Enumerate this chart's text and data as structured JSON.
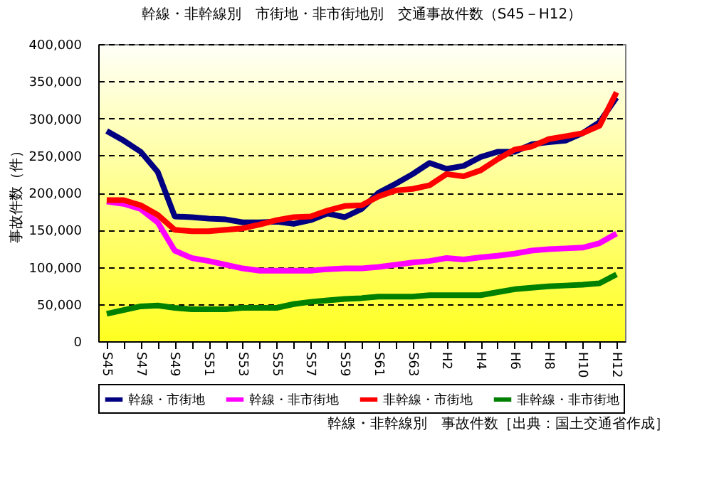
{
  "chart_data": {
    "type": "line",
    "title": "幹線・非幹線別　市街地・非市街地別　交通事故件数（S45－H12）",
    "ylabel": "事故件数（件）",
    "categories": [
      "S45",
      null,
      "S47",
      null,
      "S49",
      null,
      "S51",
      null,
      "S53",
      null,
      "S55",
      null,
      "S57",
      null,
      "S59",
      null,
      "S61",
      null,
      "S63",
      null,
      "H2",
      null,
      "H4",
      null,
      "H6",
      null,
      "H8",
      null,
      "H10",
      null,
      "H12"
    ],
    "series": [
      {
        "name": "幹線・市街地",
        "color": "#000080",
        "values": [
          283000,
          270000,
          255000,
          228000,
          168000,
          167000,
          165000,
          164000,
          160000,
          160000,
          161000,
          158000,
          163000,
          172000,
          167000,
          178000,
          200000,
          212000,
          225000,
          240000,
          232000,
          236000,
          248000,
          255000,
          255000,
          265000,
          268000,
          270000,
          280000,
          295000,
          328000
        ]
      },
      {
        "name": "幹線・非市街地",
        "color": "#ff00ff",
        "values": [
          188000,
          185000,
          178000,
          160000,
          122000,
          112000,
          108000,
          103000,
          98000,
          95000,
          95000,
          95000,
          95000,
          97000,
          98000,
          98000,
          100000,
          103000,
          106000,
          108000,
          112000,
          110000,
          113000,
          115000,
          118000,
          122000,
          124000,
          125000,
          126000,
          132000,
          145000
        ]
      },
      {
        "name": "非幹線・市街地",
        "color": "#ff0000",
        "values": [
          190000,
          190000,
          183000,
          170000,
          150000,
          148000,
          148000,
          150000,
          152000,
          157000,
          163000,
          167000,
          168000,
          176000,
          182000,
          183000,
          195000,
          203000,
          205000,
          210000,
          225000,
          222000,
          230000,
          245000,
          258000,
          262000,
          272000,
          276000,
          280000,
          290000,
          335000
        ]
      },
      {
        "name": "非幹線・非市街地",
        "color": "#008000",
        "values": [
          37000,
          42000,
          47000,
          48000,
          45000,
          43000,
          43000,
          43000,
          45000,
          45000,
          45000,
          50000,
          53000,
          55000,
          57000,
          58000,
          60000,
          60000,
          60000,
          62000,
          62000,
          62000,
          62000,
          66000,
          70000,
          72000,
          74000,
          75000,
          76000,
          78000,
          90000
        ]
      }
    ],
    "ylim": [
      0,
      400000
    ],
    "yticks": [
      0,
      {
        "value": 50000,
        "label": "50,000"
      },
      {
        "value": 100000,
        "label": "100,000"
      },
      {
        "value": 150000,
        "label": "150,000"
      },
      {
        "value": 200000,
        "label": "200,000"
      },
      {
        "value": 250000,
        "label": "250,000"
      },
      {
        "value": 300000,
        "label": "300,000"
      },
      {
        "value": 350000,
        "label": "350,000"
      },
      {
        "value": 400000,
        "label": "400,000"
      }
    ],
    "grid": "y",
    "legend": "bottom",
    "marker": "none",
    "line_style": "solid",
    "annotations": [
      "幹線・非幹線別　事故件数［出典：国土交通省作成］"
    ]
  }
}
